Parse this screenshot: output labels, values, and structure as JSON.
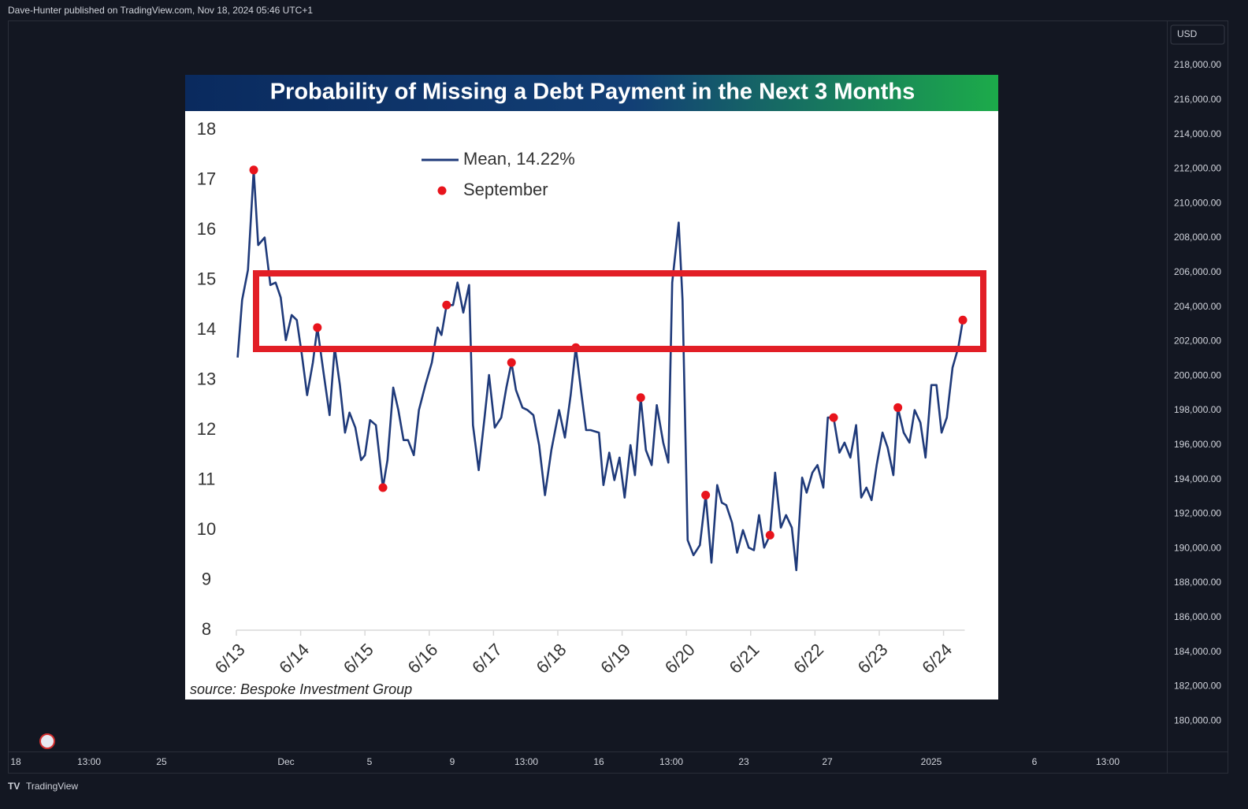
{
  "header": {
    "text": "Dave-Hunter published on TradingView.com, Nov 18, 2024 05:46 UTC+1"
  },
  "price_axis": {
    "currency": "USD",
    "labels": [
      "218,000.00",
      "216,000.00",
      "214,000.00",
      "212,000.00",
      "210,000.00",
      "208,000.00",
      "206,000.00",
      "204,000.00",
      "202,000.00",
      "200,000.00",
      "198,000.00",
      "196,000.00",
      "194,000.00",
      "192,000.00",
      "190,000.00",
      "188,000.00",
      "186,000.00",
      "184,000.00",
      "182,000.00",
      "180,000.00"
    ]
  },
  "time_axis": {
    "labels": [
      "18",
      "13:00",
      "25",
      "Dec",
      "5",
      "9",
      "13:00",
      "16",
      "13:00",
      "23",
      "27",
      "2025",
      "6",
      "13:00"
    ]
  },
  "footer": {
    "brand": "TradingView"
  },
  "chart_data": {
    "type": "line",
    "title": "Probability of Missing a Debt Payment in the Next 3 Months",
    "annotation": "source: Bespoke Investment Group",
    "xlim": [
      2013.42,
      2024.75
    ],
    "xticks": [
      {
        "value": 2013.42,
        "label": "6/13"
      },
      {
        "value": 2014.42,
        "label": "6/14"
      },
      {
        "value": 2015.42,
        "label": "6/15"
      },
      {
        "value": 2016.42,
        "label": "6/16"
      },
      {
        "value": 2017.42,
        "label": "6/17"
      },
      {
        "value": 2018.42,
        "label": "6/18"
      },
      {
        "value": 2019.42,
        "label": "6/19"
      },
      {
        "value": 2020.42,
        "label": "6/20"
      },
      {
        "value": 2021.42,
        "label": "6/21"
      },
      {
        "value": 2022.42,
        "label": "6/22"
      },
      {
        "value": 2023.42,
        "label": "6/23"
      },
      {
        "value": 2024.42,
        "label": "6/24"
      }
    ],
    "ylim": [
      8,
      18
    ],
    "yticks": [
      8,
      9,
      10,
      11,
      12,
      13,
      14,
      15,
      16,
      17,
      18
    ],
    "series": [
      {
        "name": "Mean, 14.22%",
        "color": "#1f3a7a",
        "x": [
          2013.44,
          2013.51,
          2013.6,
          2013.69,
          2013.76,
          2013.86,
          2013.95,
          2014.03,
          2014.11,
          2014.19,
          2014.28,
          2014.36,
          2014.44,
          2014.52,
          2014.61,
          2014.68,
          2014.77,
          2014.87,
          2014.95,
          2015.03,
          2015.11,
          2015.18,
          2015.27,
          2015.36,
          2015.42,
          2015.5,
          2015.59,
          2015.7,
          2015.77,
          2015.86,
          2015.94,
          2016.02,
          2016.09,
          2016.18,
          2016.26,
          2016.36,
          2016.46,
          2016.55,
          2016.61,
          2016.69,
          2016.79,
          2016.86,
          2016.95,
          2017.04,
          2017.1,
          2017.19,
          2017.28,
          2017.35,
          2017.44,
          2017.54,
          2017.62,
          2017.7,
          2017.77,
          2017.87,
          2017.95,
          2018.04,
          2018.13,
          2018.22,
          2018.32,
          2018.44,
          2018.53,
          2018.62,
          2018.7,
          2018.79,
          2018.86,
          2018.93,
          2019.06,
          2019.13,
          2019.22,
          2019.3,
          2019.38,
          2019.46,
          2019.55,
          2019.62,
          2019.71,
          2019.79,
          2019.88,
          2019.96,
          2020.06,
          2020.14,
          2020.2,
          2020.3,
          2020.36,
          2020.44,
          2020.53,
          2020.63,
          2020.72,
          2020.81,
          2020.9,
          2020.97,
          2021.04,
          2021.13,
          2021.21,
          2021.3,
          2021.39,
          2021.47,
          2021.55,
          2021.63,
          2021.72,
          2021.8,
          2021.89,
          2021.97,
          2022.06,
          2022.13,
          2022.22,
          2022.29,
          2022.38,
          2022.46,
          2022.55,
          2022.62,
          2022.71,
          2022.8,
          2022.88,
          2022.97,
          2023.06,
          2023.14,
          2023.22,
          2023.3,
          2023.38,
          2023.47,
          2023.55,
          2023.64,
          2023.71,
          2023.8,
          2023.89,
          2023.97,
          2024.06,
          2024.14,
          2024.23,
          2024.31,
          2024.39,
          2024.47,
          2024.56,
          2024.65,
          2024.72
        ],
        "values": [
          13.45,
          14.6,
          15.2,
          17.2,
          15.7,
          15.85,
          14.9,
          14.95,
          14.65,
          13.8,
          14.3,
          14.2,
          13.5,
          12.7,
          13.35,
          14.05,
          13.2,
          12.3,
          13.65,
          12.9,
          11.95,
          12.35,
          12.05,
          11.4,
          11.5,
          12.2,
          12.1,
          10.85,
          11.4,
          12.85,
          12.4,
          11.8,
          11.8,
          11.5,
          12.4,
          12.9,
          13.35,
          14.05,
          13.9,
          14.5,
          14.5,
          14.95,
          14.35,
          14.9,
          12.1,
          11.2,
          12.25,
          13.1,
          12.05,
          12.25,
          12.85,
          13.35,
          12.8,
          12.45,
          12.4,
          12.3,
          11.7,
          10.7,
          11.6,
          12.4,
          11.85,
          12.7,
          13.65,
          12.7,
          12.0,
          12.0,
          11.95,
          10.9,
          11.55,
          11.0,
          11.45,
          10.65,
          11.7,
          11.1,
          12.65,
          11.6,
          11.3,
          12.5,
          11.75,
          11.35,
          14.95,
          16.15,
          14.6,
          9.8,
          9.5,
          9.7,
          10.7,
          9.35,
          10.9,
          10.55,
          10.5,
          10.15,
          9.55,
          10.0,
          9.65,
          9.6,
          10.3,
          9.65,
          9.9,
          11.15,
          10.05,
          10.3,
          10.05,
          9.2,
          11.05,
          10.75,
          11.15,
          11.3,
          10.85,
          12.25,
          12.25,
          11.55,
          11.75,
          11.45,
          12.1,
          10.65,
          10.85,
          10.6,
          11.3,
          11.95,
          11.65,
          11.1,
          12.45,
          11.95,
          11.75,
          12.4,
          12.15,
          11.45,
          12.9,
          12.9,
          11.95,
          12.25,
          13.25,
          13.65,
          14.2
        ]
      },
      {
        "name": "September",
        "color": "#e8141c",
        "type": "scatter",
        "x": [
          2013.69,
          2014.68,
          2015.7,
          2016.69,
          2017.7,
          2018.7,
          2019.71,
          2020.72,
          2021.72,
          2022.71,
          2023.71,
          2024.72
        ],
        "values": [
          17.2,
          14.05,
          10.85,
          14.5,
          13.35,
          13.65,
          12.65,
          10.7,
          9.9,
          12.25,
          12.45,
          14.2
        ]
      }
    ]
  }
}
